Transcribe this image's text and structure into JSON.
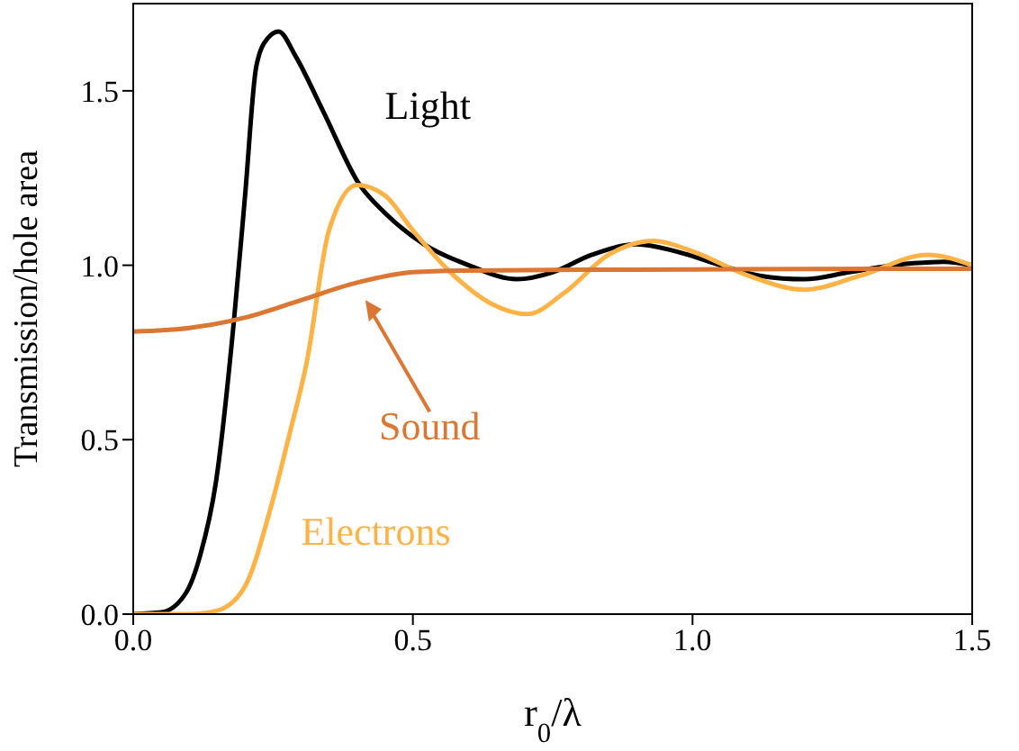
{
  "chart_data": {
    "type": "line",
    "xlabel": "r$_{0}$/λ",
    "ylabel": "Transmission/hole area",
    "xlim": [
      0,
      1.5
    ],
    "ylim": [
      0,
      1.75
    ],
    "xticks": [
      {
        "value": 0,
        "label": "0.0"
      },
      {
        "value": 0.5,
        "label": "0.5"
      },
      {
        "value": 1,
        "label": "1.0"
      },
      {
        "value": 1.5,
        "label": "1.5"
      }
    ],
    "yticks": [
      {
        "value": 0,
        "label": "0.0"
      },
      {
        "value": 0.5,
        "label": "0.5"
      },
      {
        "value": 1,
        "label": "1.0"
      },
      {
        "value": 1.5,
        "label": "1.5"
      }
    ],
    "marker": "none",
    "line_style": "solid",
    "series": [
      {
        "name": "Light",
        "color": "#000000",
        "x": [
          0,
          0.05,
          0.094,
          0.12,
          0.148,
          0.18,
          0.2,
          0.22,
          0.24,
          0.26,
          0.29,
          0.34,
          0.405,
          0.45,
          0.52,
          0.6,
          0.686,
          0.75,
          0.82,
          0.9,
          0.97,
          1.05,
          1.12,
          1.2,
          1.28,
          1.36,
          1.45,
          1.5
        ],
        "values": [
          0,
          0.005,
          0.06,
          0.17,
          0.38,
          0.84,
          1.2,
          1.57,
          1.65,
          1.67,
          1.6,
          1.44,
          1.23,
          1.15,
          1.06,
          1.0,
          0.96,
          0.98,
          1.03,
          1.06,
          1.04,
          1.0,
          0.97,
          0.96,
          0.98,
          1.0,
          1.01,
          1.0
        ]
      },
      {
        "name": "Electrons",
        "color": "#ffb347",
        "x": [
          0,
          0.1,
          0.15,
          0.2,
          0.245,
          0.28,
          0.31,
          0.35,
          0.4,
          0.45,
          0.5,
          0.567,
          0.64,
          0.705,
          0.77,
          0.85,
          0.93,
          1.0,
          1.1,
          1.2,
          1.3,
          1.42,
          1.5
        ],
        "values": [
          0,
          0,
          0.01,
          0.08,
          0.3,
          0.52,
          0.72,
          1.1,
          1.23,
          1.2,
          1.1,
          0.98,
          0.89,
          0.86,
          0.92,
          1.03,
          1.07,
          1.04,
          0.97,
          0.93,
          0.97,
          1.03,
          1.0
        ]
      },
      {
        "name": "Sound",
        "color": "#dc7633",
        "x": [
          0,
          0.1,
          0.2,
          0.3,
          0.4,
          0.5,
          0.6,
          0.8,
          1.0,
          1.2,
          1.5
        ],
        "values": [
          0.81,
          0.82,
          0.85,
          0.9,
          0.95,
          0.98,
          0.985,
          0.987,
          0.988,
          0.989,
          0.99
        ]
      }
    ]
  }
}
